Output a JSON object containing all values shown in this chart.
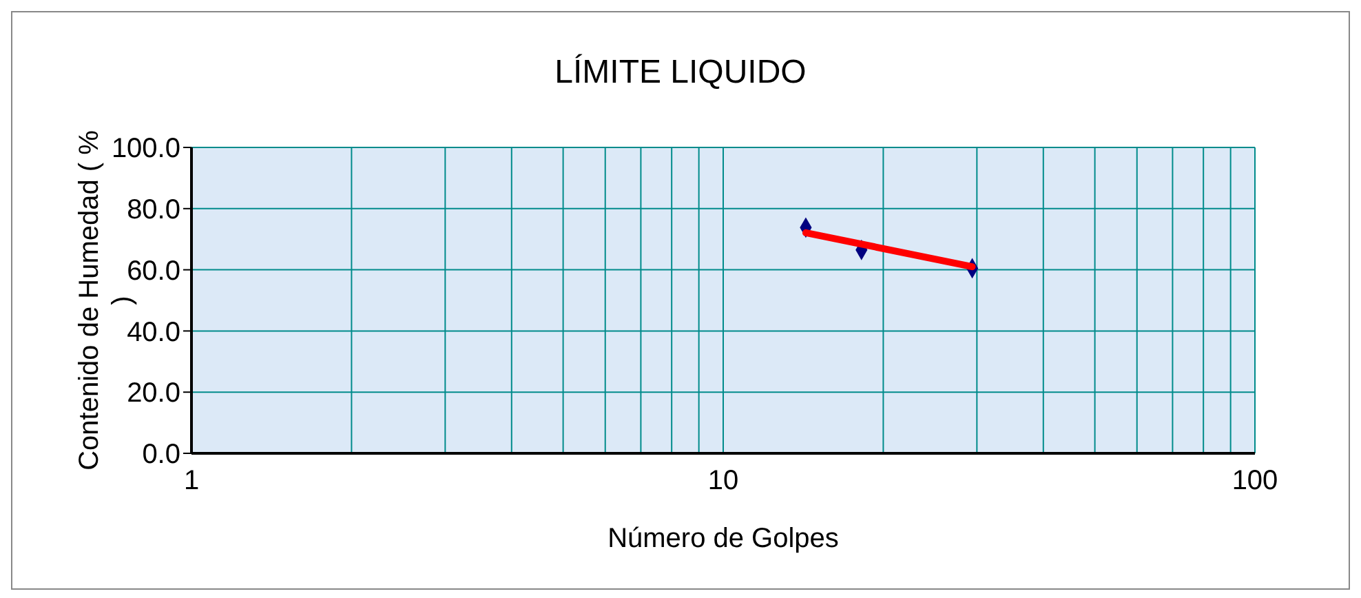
{
  "chart_data": {
    "type": "scatter",
    "title": "LÍMITE LIQUIDO",
    "xlabel": "Número de Golpes",
    "ylabel": "Contenido de Humedad ( % )",
    "log": "x",
    "grid": true,
    "xlim": [
      1,
      100
    ],
    "xticks": [
      1,
      {
        "value": 2,
        "label": null
      },
      {
        "value": 3,
        "label": null
      },
      {
        "value": 4,
        "label": null
      },
      {
        "value": 5,
        "label": null
      },
      {
        "value": 6,
        "label": null
      },
      {
        "value": 7,
        "label": null
      },
      {
        "value": 8,
        "label": null
      },
      {
        "value": 9,
        "label": null
      },
      10,
      {
        "value": 20,
        "label": null
      },
      {
        "value": 30,
        "label": null
      },
      {
        "value": 40,
        "label": null
      },
      {
        "value": 50,
        "label": null
      },
      {
        "value": 60,
        "label": null
      },
      {
        "value": 70,
        "label": null
      },
      {
        "value": 80,
        "label": null
      },
      {
        "value": 90,
        "label": null
      },
      100
    ],
    "ylim": [
      0,
      100
    ],
    "yticks": [
      {
        "value": 0,
        "label": "0.0"
      },
      {
        "value": 20,
        "label": "20.0"
      },
      {
        "value": 40,
        "label": "40.0"
      },
      {
        "value": 60,
        "label": "60.0"
      },
      {
        "value": 80,
        "label": "80.0"
      },
      {
        "value": 100,
        "label": "100.0"
      }
    ],
    "series": [
      {
        "color": "#000080",
        "marker": "diamond",
        "x": [
          14.3,
          18.2,
          29.4
        ],
        "values": [
          73.8,
          66.5,
          60.5
        ]
      },
      {
        "type": "line",
        "color": "#ff0000",
        "marker": "none",
        "line_style": "solid",
        "x": [
          14.3,
          29.4
        ],
        "values": [
          72.1,
          61.0
        ]
      }
    ]
  }
}
